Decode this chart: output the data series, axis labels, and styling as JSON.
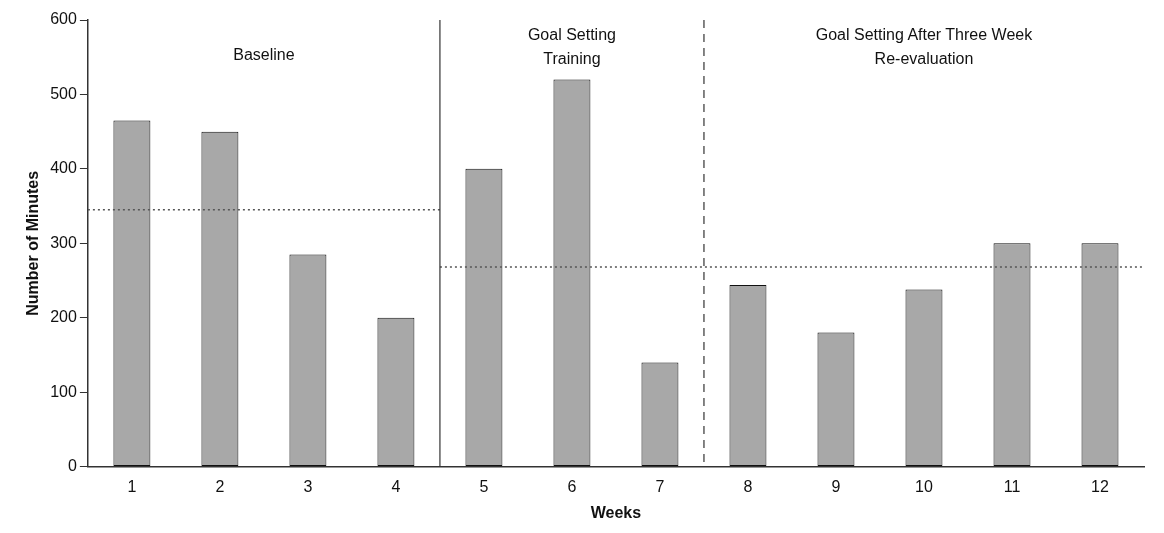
{
  "chart_data": {
    "type": "bar",
    "xlabel": "Weeks",
    "ylabel": "Number of Minutes",
    "x": [
      1,
      2,
      3,
      4,
      5,
      6,
      7,
      8,
      9,
      10,
      11,
      12
    ],
    "xlim": [
      0.5,
      12.5
    ],
    "xticks": [
      1,
      2,
      3,
      4,
      5,
      6,
      7,
      8,
      9,
      10,
      11,
      12
    ],
    "ylim": [
      0,
      600
    ],
    "yticks": [
      0,
      100,
      200,
      300,
      400,
      500,
      600
    ],
    "grid": false,
    "series": [
      {
        "color": "#a8a8a8",
        "values": [
          465,
          450,
          285,
          200,
          400,
          520,
          140,
          244,
          180,
          238,
          300,
          300
        ]
      },
      {
        "type": "line",
        "x": [
          0.5,
          4.5
        ],
        "values": [
          345,
          345
        ],
        "color": "#555555",
        "line_style": "dotted"
      },
      {
        "type": "line",
        "x": [
          4.5,
          12.5
        ],
        "values": [
          268,
          268
        ],
        "color": "#555555",
        "line_style": "dotted"
      }
    ],
    "ref_lines": [
      {
        "axis": "x",
        "value": 4.5,
        "color": "#333333",
        "line_style": "solid"
      },
      {
        "axis": "x",
        "value": 7.5,
        "color": "#333333",
        "line_style": "dashed"
      }
    ],
    "annotations": [
      "Baseline",
      "Goal Setting Training",
      "Goal Setting After Three Week Re-evaluation"
    ]
  }
}
